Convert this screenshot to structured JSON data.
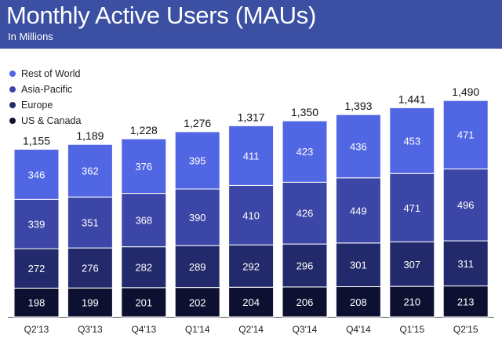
{
  "header": {
    "title": "Monthly Active Users (MAUs)",
    "subtitle": "In Millions"
  },
  "colors": {
    "header_bg": "#3b4fa3",
    "rest_of_world": "#5166e3",
    "asia_pacific": "#3c46a6",
    "europe": "#232a6b",
    "us_canada": "#0d1031"
  },
  "legend": [
    {
      "label": "Rest of World",
      "color": "#5166e3"
    },
    {
      "label": "Asia-Pacific",
      "color": "#3c46a6"
    },
    {
      "label": "Europe",
      "color": "#232a6b"
    },
    {
      "label": "US & Canada",
      "color": "#0d1031"
    }
  ],
  "chart_data": {
    "type": "bar",
    "stacked": true,
    "title": "Monthly Active Users (MAUs)",
    "subtitle": "In Millions",
    "categories": [
      "Q2'13",
      "Q3'13",
      "Q4'13",
      "Q1'14",
      "Q2'14",
      "Q3'14",
      "Q4'14",
      "Q1'15",
      "Q2'15"
    ],
    "totals": [
      "1,155",
      "1,189",
      "1,228",
      "1,276",
      "1,317",
      "1,350",
      "1,393",
      "1,441",
      "1,490"
    ],
    "series": [
      {
        "name": "US & Canada",
        "color": "#0d1031",
        "values": [
          198,
          199,
          201,
          202,
          204,
          206,
          208,
          210,
          213
        ]
      },
      {
        "name": "Europe",
        "color": "#232a6b",
        "values": [
          272,
          276,
          282,
          289,
          292,
          296,
          301,
          307,
          311
        ]
      },
      {
        "name": "Asia-Pacific",
        "color": "#3c46a6",
        "values": [
          339,
          351,
          368,
          390,
          410,
          426,
          449,
          471,
          496
        ]
      },
      {
        "name": "Rest of World",
        "color": "#5166e3",
        "values": [
          346,
          362,
          376,
          395,
          411,
          423,
          436,
          453,
          471
        ]
      }
    ],
    "legend_position": "top-left",
    "grid": false
  }
}
